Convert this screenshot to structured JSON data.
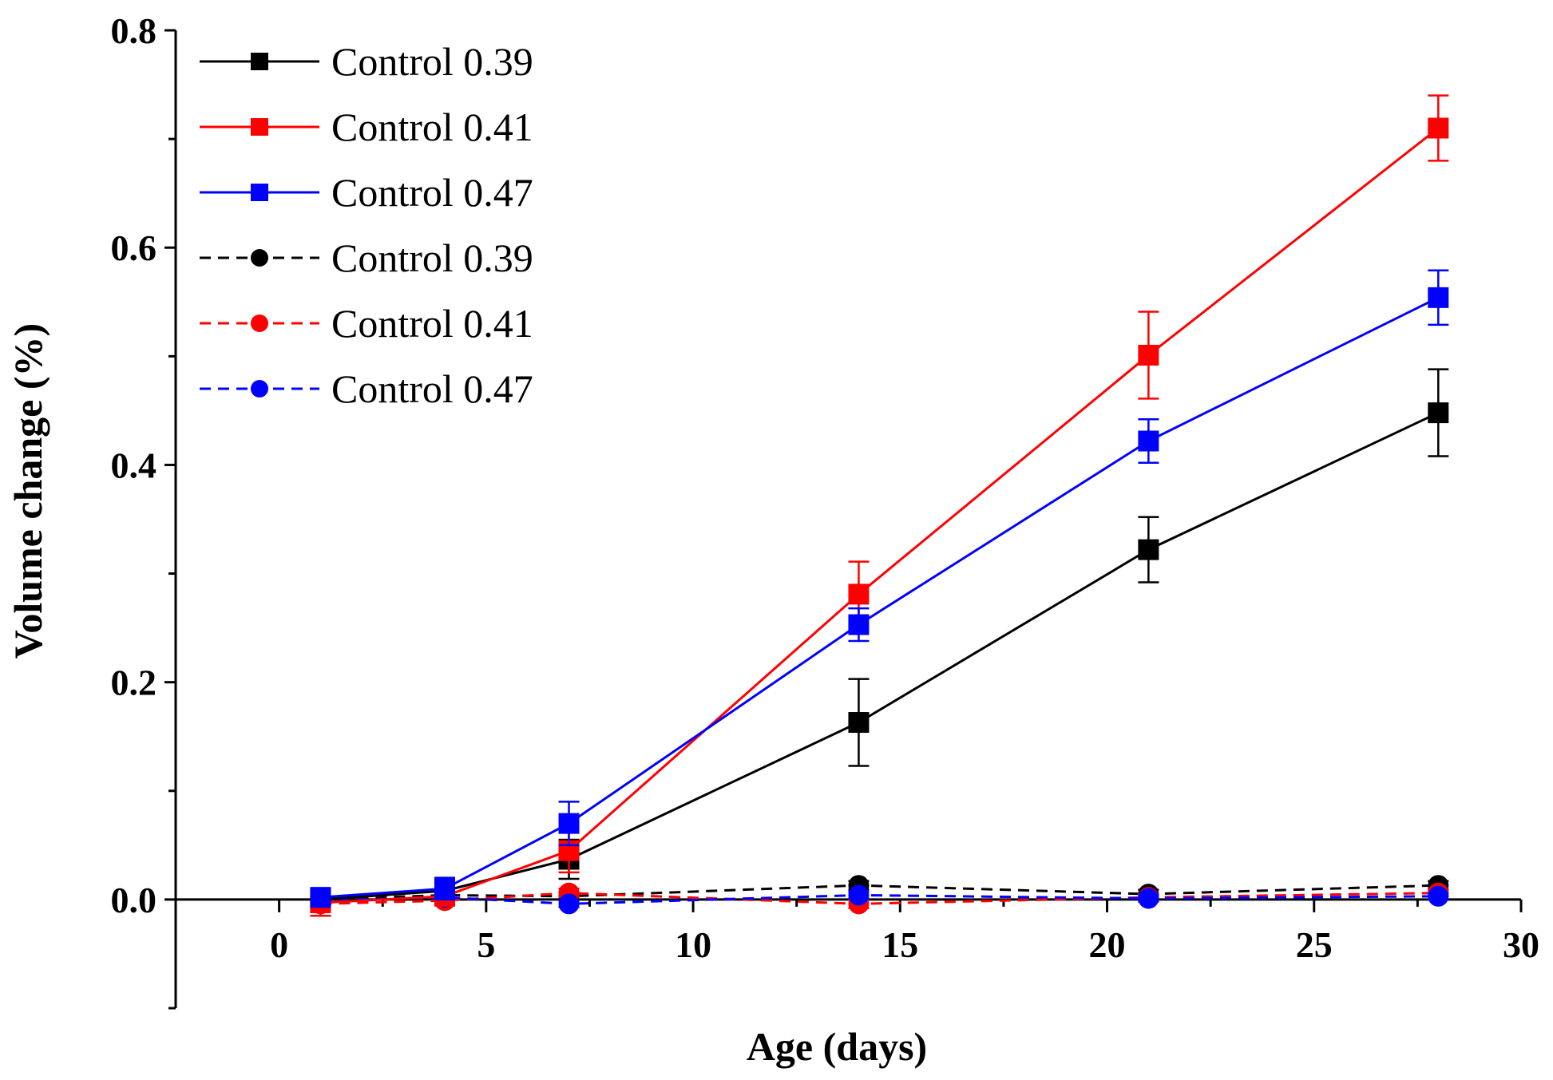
{
  "chart_data": {
    "type": "line",
    "title": "",
    "xlabel": "Age (days)",
    "ylabel": "Volume change (%)",
    "xlim": [
      -2.5,
      30
    ],
    "ylim": [
      -0.1,
      0.8
    ],
    "xticks": [
      0,
      5,
      10,
      15,
      20,
      25,
      30
    ],
    "xtick_labels": [
      "0",
      "5",
      "10",
      "15",
      "20",
      "25",
      "30"
    ],
    "yticks": [
      0.0,
      0.2,
      0.4,
      0.6,
      0.8
    ],
    "ytick_labels": [
      "0.0",
      "0.2",
      "0.4",
      "0.6",
      "0.8"
    ],
    "y_minor_ticks": [
      -0.1,
      0.1,
      0.3,
      0.5,
      0.7
    ],
    "grid": false,
    "legend_position": "top-left",
    "x": [
      1,
      4,
      7,
      14,
      21,
      28
    ],
    "series": [
      {
        "name": "Control 0.39",
        "color": "#000000",
        "marker": "square",
        "dash": "solid",
        "values": [
          0.0,
          0.008,
          0.037,
          0.163,
          0.322,
          0.448
        ],
        "errors": [
          0.008,
          0.008,
          0.018,
          0.04,
          0.03,
          0.04
        ]
      },
      {
        "name": "Control 0.41",
        "color": "#ff0000",
        "marker": "square",
        "dash": "solid",
        "values": [
          -0.003,
          0.003,
          0.045,
          0.281,
          0.501,
          0.71
        ],
        "errors": [
          0.012,
          0.005,
          0.02,
          0.03,
          0.04,
          0.03
        ]
      },
      {
        "name": "Control 0.47",
        "color": "#0000ff",
        "marker": "square",
        "dash": "solid",
        "values": [
          0.002,
          0.01,
          0.07,
          0.253,
          0.422,
          0.554
        ],
        "errors": [
          0.008,
          0.01,
          0.02,
          0.015,
          0.02,
          0.025
        ]
      },
      {
        "name": "Control 0.39",
        "color": "#000000",
        "marker": "circle",
        "dash": "dashed",
        "values": [
          0.0,
          0.004,
          0.003,
          0.013,
          0.005,
          0.013
        ],
        "errors": [
          0.004,
          0.004,
          0.004,
          0.004,
          0.004,
          0.004
        ]
      },
      {
        "name": "Control 0.41",
        "color": "#ff0000",
        "marker": "circle",
        "dash": "dashed",
        "values": [
          -0.004,
          -0.001,
          0.006,
          -0.004,
          0.002,
          0.006
        ],
        "errors": [
          0.006,
          0.004,
          0.004,
          0.004,
          0.003,
          0.003
        ]
      },
      {
        "name": "Control 0.47",
        "color": "#0000ff",
        "marker": "circle",
        "dash": "dashed",
        "values": [
          -0.001,
          0.002,
          -0.004,
          0.004,
          0.001,
          0.003
        ],
        "errors": [
          0.004,
          0.003,
          0.003,
          0.003,
          0.003,
          0.003
        ]
      }
    ]
  }
}
